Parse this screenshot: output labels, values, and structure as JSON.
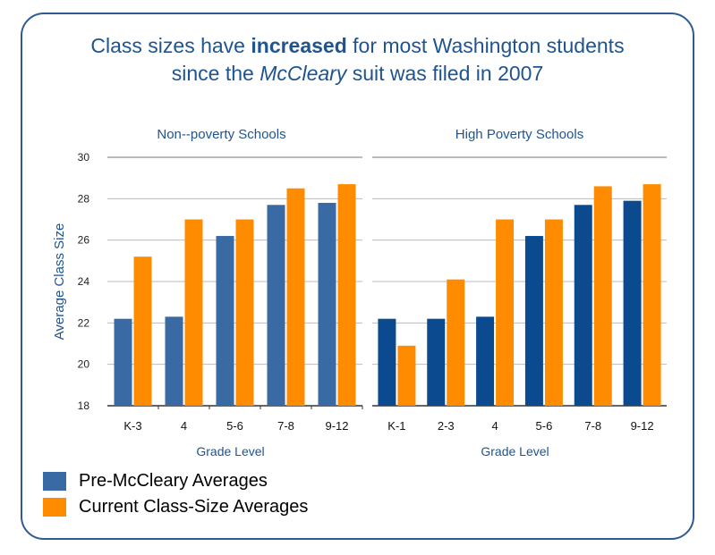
{
  "title": {
    "line1_pre": "Class sizes have ",
    "line1_bold": "increased",
    "line1_post": " for most Washington students",
    "line2_pre": "since the ",
    "line2_italic": "McCleary",
    "line2_post": " suit was filed in 2007"
  },
  "colors": {
    "pre": "#3a6aa3",
    "pre_dark": "#0b4a8e",
    "current": "#ff8c00",
    "text_blue": "#20548f",
    "frame": "#2f5b91"
  },
  "legend": {
    "pre_label": "Pre-McCleary Averages",
    "current_label": "Current Class-Size Averages"
  },
  "chart_data": [
    {
      "type": "bar",
      "title": "Non--poverty Schools",
      "xlabel": "Grade Level",
      "ylabel": "Average Class Size",
      "ylim": [
        18,
        30
      ],
      "yticks": [
        18,
        20,
        22,
        24,
        26,
        28,
        30
      ],
      "categories": [
        "K-3",
        "4",
        "5-6",
        "7-8",
        "9-12"
      ],
      "series": [
        {
          "name": "Pre-McCleary Averages",
          "values": [
            22.2,
            22.3,
            26.2,
            27.7,
            27.8
          ]
        },
        {
          "name": "Current Class-Size Averages",
          "values": [
            25.2,
            27.0,
            27.0,
            28.5,
            28.7
          ]
        }
      ],
      "grid": true
    },
    {
      "type": "bar",
      "title": "High Poverty Schools",
      "xlabel": "Grade Level",
      "ylabel": "",
      "ylim": [
        18,
        30
      ],
      "categories": [
        "K-1",
        "2-3",
        "4",
        "5-6",
        "7-8",
        "9-12"
      ],
      "series": [
        {
          "name": "Pre-McCleary Averages",
          "values": [
            22.2,
            22.2,
            22.3,
            26.2,
            27.7,
            27.9
          ]
        },
        {
          "name": "Current Class-Size Averages",
          "values": [
            20.9,
            24.1,
            27.0,
            27.0,
            28.6,
            28.7
          ]
        }
      ],
      "grid": true
    }
  ]
}
